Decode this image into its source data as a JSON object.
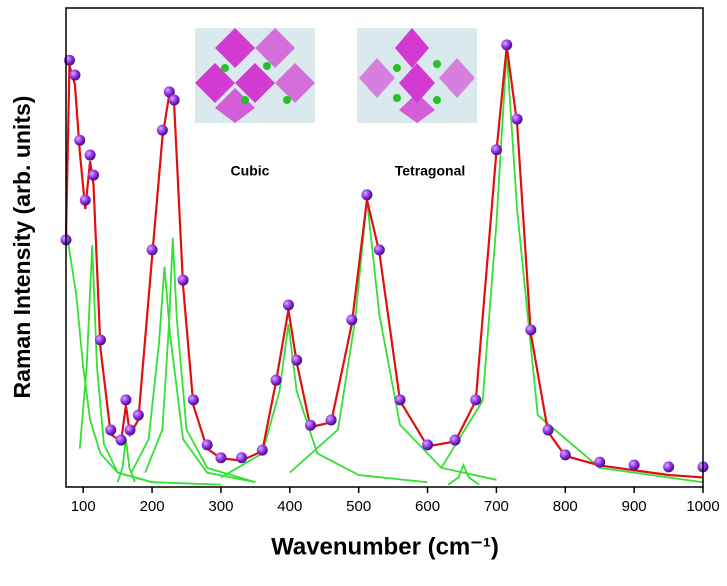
{
  "chart_data": {
    "type": "line",
    "xlabel": "Wavenumber (cm⁻¹)",
    "ylabel": "Raman Intensity (arb. units)",
    "annotations": [
      "Cubic",
      "Tetragonal"
    ],
    "xlim": [
      75,
      1000
    ],
    "ylim": [
      0,
      100
    ],
    "xticks": [
      100,
      200,
      300,
      400,
      500,
      600,
      700,
      800,
      900,
      1000
    ],
    "series": [
      {
        "style": "markers",
        "color": "#8a2be2",
        "x": [
          75,
          80,
          88,
          95,
          103,
          110,
          115,
          125,
          140,
          155,
          162,
          168,
          180,
          200,
          215,
          225,
          232,
          245,
          260,
          280,
          300,
          330,
          360,
          380,
          398,
          410,
          430,
          460,
          490,
          512,
          530,
          560,
          600,
          640,
          670,
          700,
          715,
          730,
          750,
          775,
          800,
          850,
          900,
          950,
          1000
        ],
        "values": [
          51.6,
          89.1,
          86,
          72.4,
          59.9,
          69.3,
          65.1,
          30.7,
          11.9,
          9.8,
          18.2,
          11.9,
          15,
          49.5,
          74.5,
          82.5,
          80.8,
          43.2,
          18.2,
          8.8,
          6.1,
          6.1,
          7.7,
          22.3,
          38,
          26.5,
          12.9,
          14,
          34.9,
          61,
          49.5,
          18.2,
          8.8,
          9.8,
          18.2,
          70.4,
          92.3,
          76.8,
          32.8,
          11.9,
          6.7,
          5.2,
          4.6,
          4.2,
          4.2
        ]
      },
      {
        "style": "line",
        "color": "#e01010",
        "x": [
          75,
          80,
          88,
          95,
          103,
          110,
          115,
          125,
          140,
          155,
          162,
          168,
          180,
          200,
          215,
          225,
          232,
          245,
          260,
          280,
          300,
          330,
          360,
          380,
          398,
          410,
          430,
          460,
          490,
          512,
          530,
          560,
          600,
          640,
          670,
          700,
          715,
          730,
          750,
          775,
          800,
          850,
          900,
          950,
          1000
        ],
        "values": [
          52,
          88,
          84,
          70,
          58,
          68,
          63,
          29,
          11,
          9.5,
          17,
          11,
          14,
          48,
          73,
          82,
          80,
          42,
          17,
          8,
          6,
          5.5,
          7.5,
          22,
          37,
          26,
          12.5,
          13.5,
          34,
          60,
          49,
          18,
          8.5,
          9.5,
          18,
          70,
          92,
          76,
          32,
          11.5,
          6.5,
          4.5,
          3.5,
          2.5,
          2
        ]
      },
      {
        "style": "line",
        "color": "#33e033",
        "x": [
          75,
          90,
          100,
          110,
          125,
          150,
          200,
          300
        ],
        "values": [
          54,
          40,
          25,
          14,
          7,
          3,
          1,
          0.5
        ]
      },
      {
        "style": "line",
        "color": "#33e033",
        "x": [
          95,
          105,
          113,
          120,
          130,
          150,
          200
        ],
        "values": [
          8,
          25,
          50.5,
          25,
          9,
          3,
          1
        ]
      },
      {
        "style": "line",
        "color": "#33e033",
        "x": [
          150,
          157,
          162,
          167,
          175
        ],
        "values": [
          1,
          4,
          10,
          4,
          1
        ]
      },
      {
        "style": "line",
        "color": "#33e033",
        "x": [
          170,
          195,
          210,
          218,
          226,
          245,
          280,
          350
        ],
        "values": [
          3,
          10,
          30,
          46,
          32,
          10,
          3,
          1
        ]
      },
      {
        "style": "line",
        "color": "#33e033",
        "x": [
          190,
          215,
          225,
          230,
          236,
          250,
          280,
          350
        ],
        "values": [
          3,
          12,
          35,
          52,
          35,
          12,
          4,
          1
        ]
      },
      {
        "style": "line",
        "color": "#33e033",
        "x": [
          300,
          360,
          385,
          398,
          410,
          440,
          500,
          600
        ],
        "values": [
          2,
          7,
          20,
          34,
          20,
          7,
          2.5,
          1
        ]
      },
      {
        "style": "line",
        "color": "#33e033",
        "x": [
          400,
          470,
          495,
          512,
          530,
          560,
          620,
          700
        ],
        "values": [
          3,
          12,
          35,
          60,
          36,
          13,
          4,
          1.5
        ]
      },
      {
        "style": "line",
        "color": "#33e033",
        "x": [
          630,
          645,
          652,
          660,
          675
        ],
        "values": [
          0.5,
          2,
          4.6,
          2,
          0.5
        ]
      },
      {
        "style": "line",
        "color": "#33e033",
        "x": [
          620,
          680,
          700,
          715,
          730,
          760,
          850,
          1000
        ],
        "values": [
          4,
          18,
          55,
          91,
          58,
          15,
          4,
          1
        ]
      }
    ]
  }
}
